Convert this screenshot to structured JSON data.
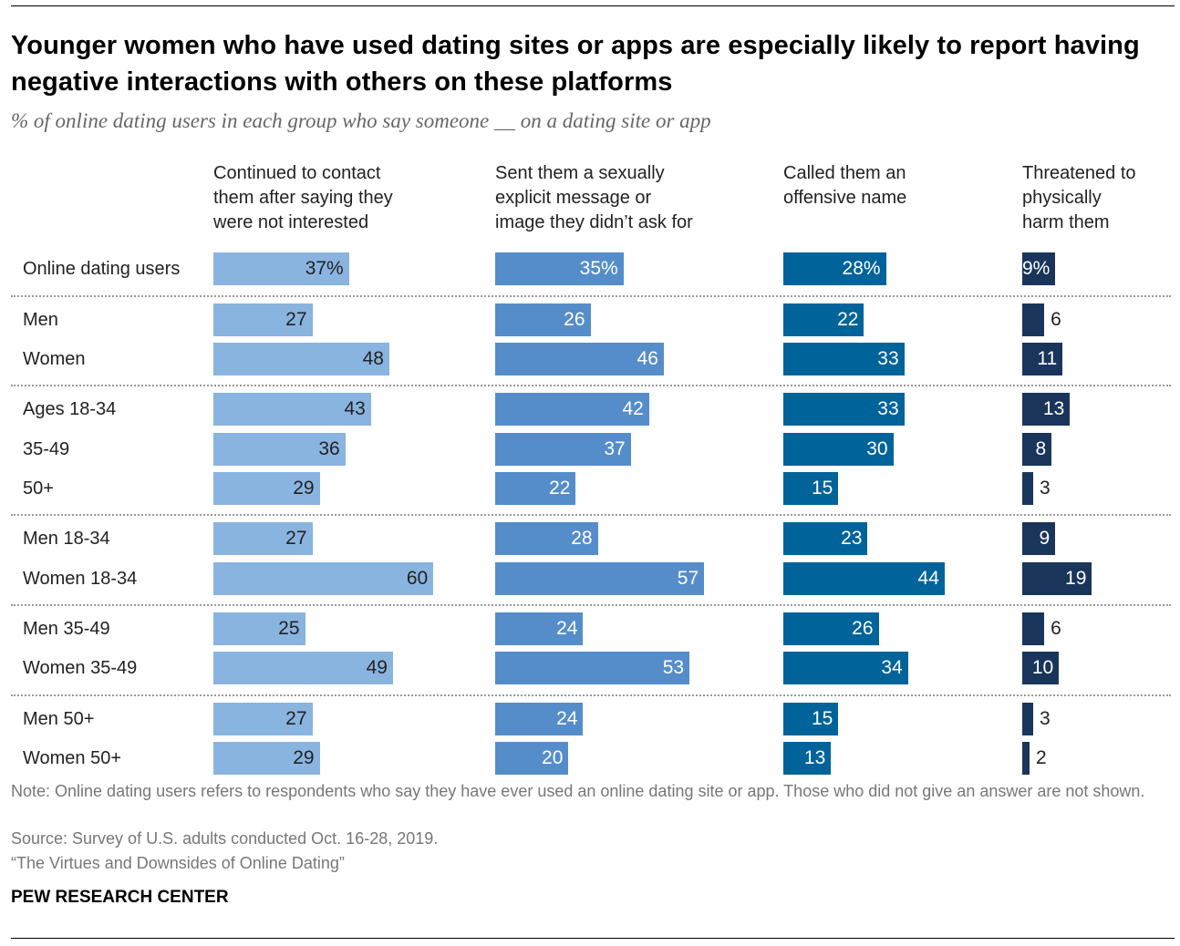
{
  "title": "Younger women who have used dating sites or apps are especially likely to report having negative interactions with others on these platforms",
  "subtitle": "% of online dating users in each group who say someone __ on a dating site or app",
  "note": "Note: Online dating users refers to respondents who say they have ever used an online dating site or app. Those who did not give an answer are not shown.",
  "source": "Source: Survey of U.S. adults conducted Oct. 16-28, 2019.",
  "report": "“The Virtues and Downsides of Online Dating”",
  "brand": "PEW RESEARCH CENTER",
  "chart_data": {
    "type": "bar",
    "title": "Younger women who have used dating sites or apps are especially likely to report having negative interactions with others on these platforms",
    "categories": [
      "Online dating users",
      "Men",
      "Women",
      "Ages 18-34",
      "35-49",
      "50+",
      "Men 18-34",
      "Women 18-34",
      "Men 35-49",
      "Women 35-49",
      "Men 50+",
      "Women 50+"
    ],
    "groups": [
      [
        0
      ],
      [
        1,
        2
      ],
      [
        3,
        4,
        5
      ],
      [
        6,
        7
      ],
      [
        8,
        9
      ],
      [
        10,
        11
      ]
    ],
    "series": [
      {
        "name": "Continued to contact\nthem after saying they\nwere not interested",
        "color": "#8ab4e0",
        "values": [
          37,
          27,
          48,
          43,
          36,
          29,
          27,
          60,
          25,
          49,
          27,
          29
        ]
      },
      {
        "name": "Sent them a sexually\nexplicit message or\nimage they didn’t ask for",
        "color": "#558dca",
        "values": [
          35,
          26,
          46,
          42,
          37,
          22,
          28,
          57,
          24,
          53,
          24,
          20
        ]
      },
      {
        "name": "Called them an\noffensive name",
        "color": "#006399",
        "values": [
          28,
          22,
          33,
          33,
          30,
          15,
          23,
          44,
          26,
          34,
          15,
          13
        ]
      },
      {
        "name": "Threatened to\nphysically\nharm them",
        "color": "#1a355b",
        "values": [
          9,
          6,
          11,
          13,
          8,
          3,
          9,
          19,
          6,
          10,
          3,
          2
        ]
      }
    ],
    "first_row_suffix": "%",
    "ylim": [
      0,
      100
    ]
  }
}
